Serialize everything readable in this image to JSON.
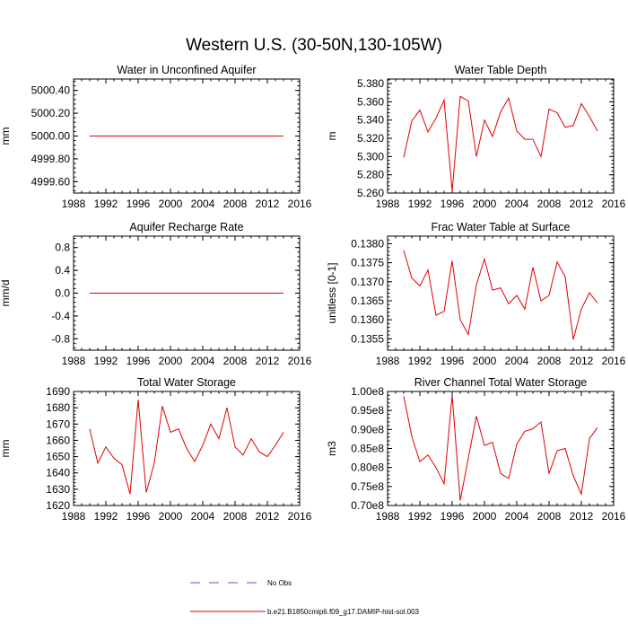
{
  "figure": {
    "title": "Western U.S. (30-50N,130-105W)"
  },
  "legend": {
    "items": [
      {
        "label": "No Obs",
        "style": "dashed",
        "color": "#5a5ad0"
      },
      {
        "label": "b.e21.B1850cmip6.f09_g17.DAMIP-hist-sol.003",
        "style": "solid",
        "color": "#e00000"
      }
    ]
  },
  "chart_data": [
    {
      "type": "line",
      "title": "Water in Unconfined Aquifer",
      "ylabel": "mm",
      "xlabel": "",
      "xlim": [
        1988,
        2016
      ],
      "ylim": [
        4999.5,
        5000.5
      ],
      "xticks": [
        "1988",
        "1992",
        "1996",
        "2000",
        "2004",
        "2008",
        "2012",
        "2016"
      ],
      "yticks": [
        "4999.60",
        "4999.80",
        "5000.00",
        "5000.20",
        "5000.40"
      ],
      "yticks_values": [
        4999.6,
        4999.8,
        5000.0,
        5000.2,
        5000.4
      ],
      "x": [
        1990,
        1991,
        1992,
        1993,
        1994,
        1995,
        1996,
        1997,
        1998,
        1999,
        2000,
        2001,
        2002,
        2003,
        2004,
        2005,
        2006,
        2007,
        2008,
        2009,
        2010,
        2011,
        2012,
        2013,
        2014
      ],
      "series": [
        {
          "color": "#e00000",
          "values": [
            5000,
            5000,
            5000,
            5000,
            5000,
            5000,
            5000,
            5000,
            5000,
            5000,
            5000,
            5000,
            5000,
            5000,
            5000,
            5000,
            5000,
            5000,
            5000,
            5000,
            5000,
            5000,
            5000,
            5000,
            5000
          ]
        }
      ]
    },
    {
      "type": "line",
      "title": "Water Table Depth",
      "ylabel": "m",
      "xlabel": "",
      "xlim": [
        1988,
        2016
      ],
      "ylim": [
        5.26,
        5.385
      ],
      "xticks": [
        "1988",
        "1992",
        "1996",
        "2000",
        "2004",
        "2008",
        "2012",
        "2016"
      ],
      "yticks": [
        "5.260",
        "5.280",
        "5.300",
        "5.320",
        "5.340",
        "5.360",
        "5.380"
      ],
      "yticks_values": [
        5.26,
        5.28,
        5.3,
        5.32,
        5.34,
        5.36,
        5.38
      ],
      "x": [
        1990,
        1991,
        1992,
        1993,
        1994,
        1995,
        1996,
        1997,
        1998,
        1999,
        2000,
        2001,
        2002,
        2003,
        2004,
        2005,
        2006,
        2007,
        2008,
        2009,
        2010,
        2011,
        2012,
        2013,
        2014
      ],
      "series": [
        {
          "color": "#e00000",
          "values": [
            5.299,
            5.339,
            5.351,
            5.327,
            5.342,
            5.362,
            5.262,
            5.366,
            5.361,
            5.3,
            5.34,
            5.322,
            5.349,
            5.364,
            5.328,
            5.319,
            5.319,
            5.3,
            5.352,
            5.348,
            5.332,
            5.334,
            5.358,
            5.344,
            5.328
          ]
        }
      ]
    },
    {
      "type": "line",
      "title": "Aquifer Recharge Rate",
      "ylabel": "mm/d",
      "xlabel": "",
      "xlim": [
        1988,
        2016
      ],
      "ylim": [
        -1.0,
        1.0
      ],
      "xticks": [
        "1988",
        "1992",
        "1996",
        "2000",
        "2004",
        "2008",
        "2012",
        "2016"
      ],
      "yticks": [
        "-0.8",
        "-0.4",
        "0.0",
        "0.4",
        "0.8"
      ],
      "yticks_values": [
        -0.8,
        -0.4,
        0.0,
        0.4,
        0.8
      ],
      "x": [
        1990,
        1991,
        1992,
        1993,
        1994,
        1995,
        1996,
        1997,
        1998,
        1999,
        2000,
        2001,
        2002,
        2003,
        2004,
        2005,
        2006,
        2007,
        2008,
        2009,
        2010,
        2011,
        2012,
        2013,
        2014
      ],
      "series": [
        {
          "color": "#e00000",
          "values": [
            0,
            0,
            0,
            0,
            0,
            0,
            0,
            0,
            0,
            0,
            0,
            0,
            0,
            0,
            0,
            0,
            0,
            0,
            0,
            0,
            0,
            0,
            0,
            0,
            0
          ]
        }
      ]
    },
    {
      "type": "line",
      "title": "Frac Water Table at Surface",
      "ylabel": "unitless [0-1]",
      "xlabel": "",
      "xlim": [
        1988,
        2016
      ],
      "ylim": [
        0.1352,
        0.1382
      ],
      "xticks": [
        "1988",
        "1992",
        "1996",
        "2000",
        "2004",
        "2008",
        "2012",
        "2016"
      ],
      "yticks": [
        "0.1355",
        "0.1360",
        "0.1365",
        "0.1370",
        "0.1375",
        "0.1380"
      ],
      "yticks_values": [
        0.1355,
        0.136,
        0.1365,
        0.137,
        0.1375,
        0.138
      ],
      "x": [
        1990,
        1991,
        1992,
        1993,
        1994,
        1995,
        1996,
        1997,
        1998,
        1999,
        2000,
        2001,
        2002,
        2003,
        2004,
        2005,
        2006,
        2007,
        2008,
        2009,
        2010,
        2011,
        2012,
        2013,
        2014
      ],
      "series": [
        {
          "color": "#e00000",
          "values": [
            0.13783,
            0.1371,
            0.13689,
            0.13731,
            0.13612,
            0.13622,
            0.13755,
            0.136,
            0.13561,
            0.13692,
            0.1376,
            0.13678,
            0.13684,
            0.13642,
            0.13664,
            0.13628,
            0.13738,
            0.1365,
            0.13664,
            0.13752,
            0.13713,
            0.13548,
            0.13628,
            0.13671,
            0.13644
          ]
        }
      ]
    },
    {
      "type": "line",
      "title": "Total Water Storage",
      "ylabel": "mm",
      "xlabel": "",
      "xlim": [
        1988,
        2016
      ],
      "ylim": [
        1620,
        1690
      ],
      "xticks": [
        "1988",
        "1992",
        "1996",
        "2000",
        "2004",
        "2008",
        "2012",
        "2016"
      ],
      "yticks": [
        "1620",
        "1630",
        "1640",
        "1650",
        "1660",
        "1670",
        "1680",
        "1690"
      ],
      "yticks_values": [
        1620,
        1630,
        1640,
        1650,
        1660,
        1670,
        1680,
        1690
      ],
      "x": [
        1990,
        1991,
        1992,
        1993,
        1994,
        1995,
        1996,
        1997,
        1998,
        1999,
        2000,
        2001,
        2002,
        2003,
        2004,
        2005,
        2006,
        2007,
        2008,
        2009,
        2010,
        2011,
        2012,
        2013,
        2014
      ],
      "series": [
        {
          "color": "#e00000",
          "values": [
            1667,
            1646,
            1656,
            1649,
            1645,
            1627,
            1685,
            1628,
            1646,
            1681,
            1665,
            1667,
            1655,
            1647,
            1657,
            1670,
            1661,
            1680,
            1656,
            1651,
            1661,
            1653,
            1650,
            1657,
            1665
          ]
        }
      ]
    },
    {
      "type": "line",
      "title": "River Channel Total Water Storage",
      "ylabel": "m3",
      "xlabel": "",
      "xlim": [
        1988,
        2016
      ],
      "ylim": [
        70000000.0,
        100000000.0
      ],
      "xticks": [
        "1988",
        "1992",
        "1996",
        "2000",
        "2004",
        "2008",
        "2012",
        "2016"
      ],
      "yticks": [
        "0.70e8",
        "0.75e8",
        "0.80e8",
        "0.85e8",
        "0.90e8",
        "0.95e8",
        "1.00e8"
      ],
      "yticks_values": [
        70000000.0,
        75000000.0,
        80000000.0,
        85000000.0,
        90000000.0,
        95000000.0,
        100000000.0
      ],
      "x": [
        1990,
        1991,
        1992,
        1993,
        1994,
        1995,
        1996,
        1997,
        1998,
        1999,
        2000,
        2001,
        2002,
        2003,
        2004,
        2005,
        2006,
        2007,
        2008,
        2009,
        2010,
        2011,
        2012,
        2013,
        2014
      ],
      "series": [
        {
          "color": "#e00000",
          "values": [
            98800000.0,
            88200000.0,
            81500000.0,
            83300000.0,
            80000000.0,
            75700000.0,
            99000000.0,
            71300000.0,
            82500000.0,
            93500000.0,
            85800000.0,
            86600000.0,
            78400000.0,
            77100000.0,
            86100000.0,
            89500000.0,
            90200000.0,
            92000000.0,
            78400000.0,
            84400000.0,
            85000000.0,
            77800000.0,
            73000000.0,
            87600000.0,
            90500000.0
          ]
        }
      ]
    }
  ]
}
